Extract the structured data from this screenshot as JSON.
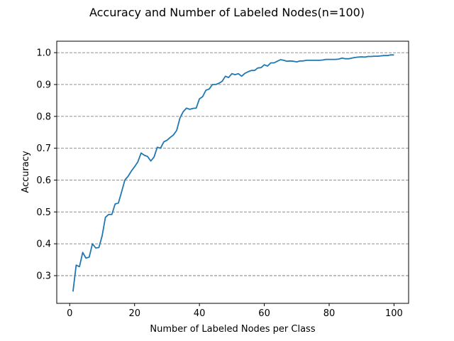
{
  "chart_data": {
    "type": "line",
    "title": "Accuracy and Number of Labeled Nodes(n=100)",
    "xlabel": "Number of Labeled Nodes per Class",
    "ylabel": "Accuracy",
    "xlim": [
      -4,
      104.5
    ],
    "ylim": [
      0.213,
      1.036
    ],
    "xticks": [
      0,
      20,
      40,
      60,
      80,
      100
    ],
    "yticks": [
      0.3,
      0.4,
      0.5,
      0.6,
      0.7,
      0.8,
      0.9,
      1.0
    ],
    "xtick_labels": [
      "0",
      "20",
      "40",
      "60",
      "80",
      "100"
    ],
    "ytick_labels": [
      "0.3",
      "0.4",
      "0.5",
      "0.6",
      "0.7",
      "0.8",
      "0.9",
      "1.0"
    ],
    "grid": "horizontal dashed",
    "color": "#1f77b4",
    "series": [
      {
        "x": [
          1,
          2,
          3,
          4,
          5,
          6,
          7,
          8,
          9,
          10,
          11,
          12,
          13,
          14,
          15,
          16,
          17,
          18,
          19,
          20,
          21,
          22,
          23,
          24,
          25,
          26,
          27,
          28,
          29,
          30,
          31,
          32,
          33,
          34,
          35,
          36,
          37,
          38,
          39,
          40,
          41,
          42,
          43,
          44,
          45,
          46,
          47,
          48,
          49,
          50,
          51,
          52,
          53,
          54,
          55,
          56,
          57,
          58,
          59,
          60,
          61,
          62,
          63,
          64,
          65,
          66,
          67,
          68,
          69,
          70,
          71,
          72,
          73,
          74,
          75,
          76,
          77,
          78,
          79,
          80,
          81,
          82,
          83,
          84,
          85,
          86,
          87,
          88,
          89,
          90,
          91,
          92,
          93,
          94,
          95,
          96,
          97,
          98,
          99,
          100
        ],
        "values": [
          0.25,
          0.333,
          0.328,
          0.373,
          0.355,
          0.358,
          0.4,
          0.387,
          0.388,
          0.425,
          0.483,
          0.492,
          0.492,
          0.525,
          0.528,
          0.563,
          0.6,
          0.612,
          0.628,
          0.642,
          0.657,
          0.685,
          0.678,
          0.674,
          0.66,
          0.672,
          0.703,
          0.7,
          0.72,
          0.725,
          0.734,
          0.742,
          0.756,
          0.795,
          0.815,
          0.826,
          0.822,
          0.825,
          0.826,
          0.855,
          0.862,
          0.882,
          0.886,
          0.9,
          0.9,
          0.904,
          0.91,
          0.926,
          0.922,
          0.934,
          0.931,
          0.934,
          0.926,
          0.935,
          0.94,
          0.944,
          0.944,
          0.952,
          0.953,
          0.962,
          0.958,
          0.968,
          0.968,
          0.973,
          0.978,
          0.976,
          0.973,
          0.974,
          0.973,
          0.971,
          0.974,
          0.974,
          0.976,
          0.976,
          0.976,
          0.976,
          0.976,
          0.977,
          0.979,
          0.979,
          0.979,
          0.979,
          0.98,
          0.983,
          0.981,
          0.981,
          0.983,
          0.985,
          0.986,
          0.987,
          0.986,
          0.988,
          0.988,
          0.989,
          0.989,
          0.99,
          0.991,
          0.991,
          0.993,
          0.993
        ]
      }
    ]
  }
}
